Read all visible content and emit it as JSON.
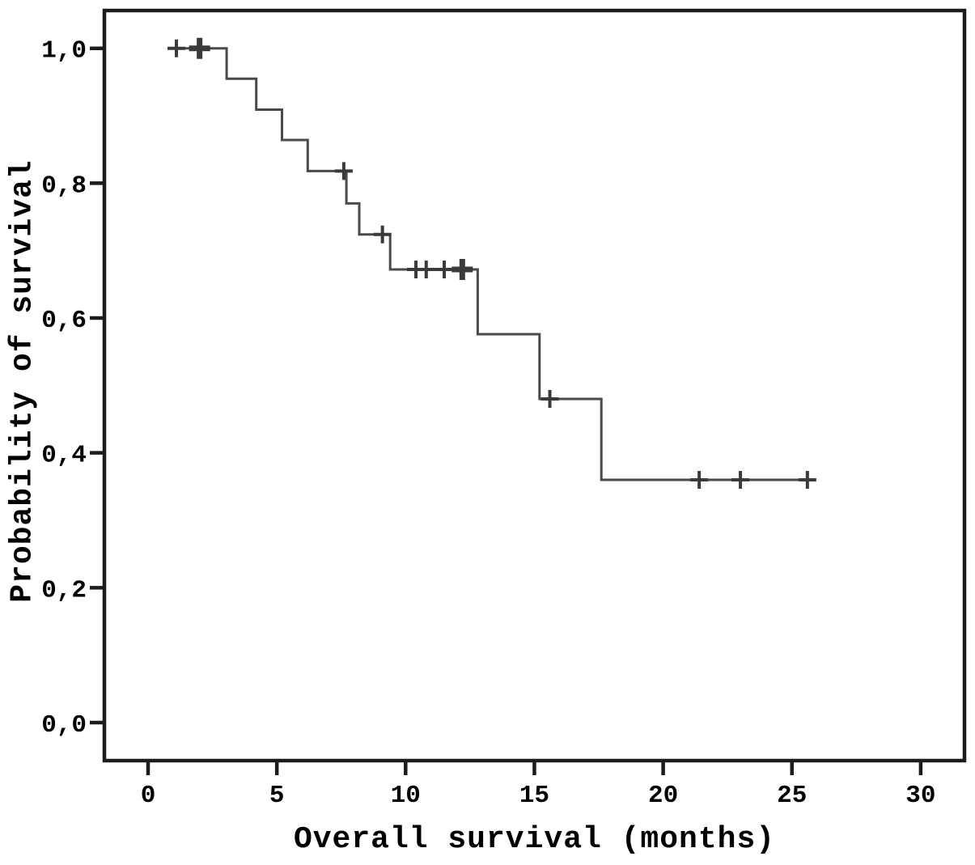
{
  "figure": {
    "background": "#ffffff"
  },
  "chart_data": {
    "type": "line",
    "subtype": "kaplan-meier-step",
    "title": "",
    "xlabel": "Overall survival (months)",
    "ylabel": "Probability of survival",
    "xlim": [
      -1.7,
      31.7
    ],
    "ylim": [
      -0.064,
      1.056
    ],
    "grid": false,
    "legend": "none",
    "x_ticks": {
      "values": [
        0,
        5,
        10,
        15,
        20,
        25,
        30
      ],
      "labels": [
        "0",
        "5",
        "10",
        "15",
        "20",
        "25",
        "30"
      ]
    },
    "y_ticks": {
      "values": [
        1.0,
        0.8,
        0.6,
        0.4,
        0.2,
        0.0
      ],
      "labels": [
        "1,0",
        "0,8",
        "0,6",
        "0,4",
        "0,2",
        "0,0"
      ]
    },
    "series": [
      {
        "name": "overall-survival",
        "curve_start_time": 0.8,
        "curve_end_time": 25.9,
        "steps": [
          {
            "t": 0.8,
            "s": 1.0
          },
          {
            "t": 3.05,
            "s": 0.955
          },
          {
            "t": 4.2,
            "s": 0.909
          },
          {
            "t": 5.2,
            "s": 0.864
          },
          {
            "t": 6.2,
            "s": 0.818
          },
          {
            "t": 7.7,
            "s": 0.77
          },
          {
            "t": 8.2,
            "s": 0.724
          },
          {
            "t": 9.4,
            "s": 0.672
          },
          {
            "t": 12.8,
            "s": 0.576
          },
          {
            "t": 15.2,
            "s": 0.48
          },
          {
            "t": 17.6,
            "s": 0.36
          }
        ],
        "censor_marks": [
          {
            "t": 1.1,
            "s": 1.0,
            "bold": false
          },
          {
            "t": 2.0,
            "s": 1.0,
            "bold": true
          },
          {
            "t": 7.6,
            "s": 0.818,
            "bold": false
          },
          {
            "t": 9.1,
            "s": 0.724,
            "bold": false
          },
          {
            "t": 10.4,
            "s": 0.672,
            "bold": false
          },
          {
            "t": 10.8,
            "s": 0.672,
            "bold": false
          },
          {
            "t": 11.5,
            "s": 0.672,
            "bold": false
          },
          {
            "t": 12.2,
            "s": 0.672,
            "bold": true
          },
          {
            "t": 15.6,
            "s": 0.48,
            "bold": false
          },
          {
            "t": 21.4,
            "s": 0.36,
            "bold": false
          },
          {
            "t": 23.0,
            "s": 0.36,
            "bold": false
          },
          {
            "t": 25.6,
            "s": 0.36,
            "bold": false
          }
        ]
      }
    ],
    "colors": {
      "curve": "#4a4a4a",
      "censor": "#3a3a3a",
      "axis": "#1c1c1c",
      "text": "#000000",
      "background": "#ffffff"
    }
  }
}
